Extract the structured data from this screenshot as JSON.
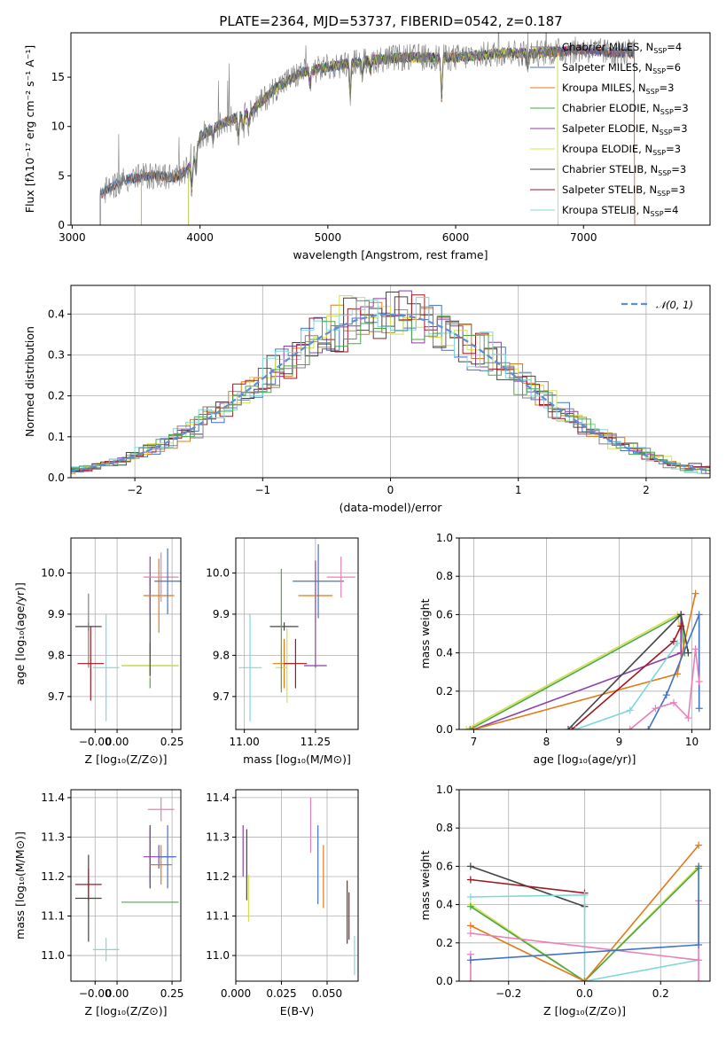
{
  "figure": {
    "title": "PLATE=2364, MJD=53737, FIBERID=0542, z=0.187"
  },
  "colors": {
    "chabrier_miles": "#808080",
    "salpeter_miles": "#4472c4",
    "kroupa_miles": "#e07b1a",
    "chabrier_elodie": "#4aa84a",
    "salpeter_elodie": "#8b3fa8",
    "kroupa_elodie": "#d4e04a",
    "chabrier_stelib": "#444444",
    "salpeter_stelib": "#a01820",
    "kroupa_stelib": "#7fd8d8",
    "pink": "#e87fb8",
    "normal_curve": "#5b8fd6"
  },
  "chart_data": [
    {
      "id": "spectrum",
      "type": "line",
      "title": "PLATE=2364, MJD=53737, FIBERID=0542, z=0.187",
      "xlabel": "wavelength [Angstrom, rest frame]",
      "ylabel": "Flux [fλ10⁻¹⁷ erg cm⁻² s⁻¹ A⁻¹]",
      "xlim": [
        2990,
        7990
      ],
      "ylim": [
        0,
        19.5
      ],
      "xticks": [
        "3000",
        "4000",
        "5000",
        "6000",
        "7000"
      ],
      "yticks": [
        "0",
        "5",
        "10",
        "15"
      ],
      "grid": false,
      "legend_position": "top-right",
      "legend": [
        {
          "label": "Chabrier MILES, N",
          "sub": "SSP",
          "suffix": "=4",
          "color": "#808080"
        },
        {
          "label": "Salpeter MILES, N",
          "sub": "SSP",
          "suffix": "=6",
          "color": "#4472c4"
        },
        {
          "label": "Kroupa MILES, N",
          "sub": "SSP",
          "suffix": "=3",
          "color": "#e07b1a"
        },
        {
          "label": "Chabrier ELODIE, N",
          "sub": "SSP",
          "suffix": "=3",
          "color": "#4aa84a"
        },
        {
          "label": "Salpeter ELODIE, N",
          "sub": "SSP",
          "suffix": "=3",
          "color": "#8b3fa8"
        },
        {
          "label": "Kroupa ELODIE, N",
          "sub": "SSP",
          "suffix": "=3",
          "color": "#d4e04a"
        },
        {
          "label": "Chabrier STELIB, N",
          "sub": "SSP",
          "suffix": "=3",
          "color": "#444444"
        },
        {
          "label": "Salpeter STELIB, N",
          "sub": "SSP",
          "suffix": "=3",
          "color": "#a01820"
        },
        {
          "label": "Kroupa STELIB, N",
          "sub": "SSP",
          "suffix": "=4",
          "color": "#7fd8d8"
        }
      ],
      "continuum": [
        [
          3220,
          3.2
        ],
        [
          3400,
          4.6
        ],
        [
          3600,
          5.0
        ],
        [
          3700,
          5.0
        ],
        [
          3800,
          4.8
        ],
        [
          3900,
          5.6
        ],
        [
          3950,
          6.5
        ],
        [
          4000,
          9.0
        ],
        [
          4200,
          10.5
        ],
        [
          4400,
          11.5
        ],
        [
          4600,
          14.0
        ],
        [
          4800,
          15.5
        ],
        [
          5000,
          16.0
        ],
        [
          5200,
          16.5
        ],
        [
          5400,
          16.8
        ],
        [
          5600,
          17.0
        ],
        [
          5800,
          17.0
        ],
        [
          6000,
          17.0
        ],
        [
          6200,
          17.2
        ],
        [
          6400,
          17.5
        ],
        [
          6600,
          17.4
        ],
        [
          6800,
          17.6
        ],
        [
          7000,
          17.8
        ],
        [
          7200,
          17.5
        ],
        [
          7400,
          17.5
        ]
      ],
      "range_start": [
        {
          "color": "#808080",
          "x": 3220
        },
        {
          "color": "#7fd8d8",
          "x": 3220
        },
        {
          "color": "#a01820",
          "x": 3220
        },
        {
          "color": "#e07b1a",
          "x": 3540
        },
        {
          "color": "#d4e04a",
          "x": 3910
        },
        {
          "color": "#8b3fa8",
          "x": 3910
        },
        {
          "color": "#4aa84a",
          "x": 3910
        }
      ],
      "range_end": [
        {
          "color": "#d4e04a",
          "x": 6800
        },
        {
          "color": "#4aa84a",
          "x": 6800
        },
        {
          "color": "#e07b1a",
          "x": 7400
        },
        {
          "color": "#a01820",
          "x": 7400
        }
      ]
    },
    {
      "id": "residuals",
      "type": "histogram",
      "xlabel": "(data-model)/error",
      "ylabel": "Normed distribution",
      "xlim": [
        -2.5,
        2.5
      ],
      "ylim": [
        0,
        0.47
      ],
      "xticks": [
        "−2",
        "−1",
        "0",
        "1",
        "2"
      ],
      "yticks": [
        "0.0",
        "0.1",
        "0.2",
        "0.3",
        "0.4"
      ],
      "grid": true,
      "legend_position": "top-right",
      "legend": [
        {
          "label": "𝒩(0, 1)",
          "color": "#5b8fd6",
          "dashed": true
        }
      ],
      "bin_width": 0.1
    },
    {
      "id": "z_age",
      "type": "errorbar",
      "xlabel": "Z [log₁₀(Z/Z⊙)]",
      "ylabel": "age  [log₁₀(age/yr)]",
      "xlim": [
        -0.21,
        0.29
      ],
      "ylim": [
        9.62,
        10.085
      ],
      "xticks": [
        "−0.00",
        "0.00",
        "0.25"
      ],
      "yticks": [
        "9.7",
        "9.8",
        "9.9",
        "10.0"
      ],
      "grid": true,
      "points": [
        {
          "x": -0.13,
          "y": 9.87,
          "xerr": 0.06,
          "yerr": 0.01,
          "color": "#444444"
        },
        {
          "x": -0.13,
          "y": 9.86,
          "xerr": 0.0,
          "yerr": 0.09,
          "color": "#808080"
        },
        {
          "x": -0.12,
          "y": 9.78,
          "xerr": 0.06,
          "yerr": 0.09,
          "color": "#a01820"
        },
        {
          "x": -0.05,
          "y": 9.77,
          "xerr": 0.06,
          "yerr": 0.13,
          "color": "#7fd8d8"
        },
        {
          "x": 0.15,
          "y": 9.775,
          "xerr": 0.13,
          "yerr": 0.055,
          "color": "#4aa84a"
        },
        {
          "x": 0.15,
          "y": 9.775,
          "xerr": 0.13,
          "yerr": 0.03,
          "color": "#d4e04a"
        },
        {
          "x": 0.15,
          "y": 9.87,
          "xerr": 0.0,
          "yerr": 0.12,
          "color": "#444444"
        },
        {
          "x": 0.15,
          "y": 9.97,
          "xerr": 0.0,
          "yerr": 0.07,
          "color": "#8b3fa8"
        },
        {
          "x": 0.19,
          "y": 9.945,
          "xerr": 0.07,
          "yerr": 0.09,
          "color": "#e07b1a"
        },
        {
          "x": 0.2,
          "y": 9.99,
          "xerr": 0.08,
          "yerr": 0.06,
          "color": "#e87fb8"
        },
        {
          "x": 0.23,
          "y": 9.98,
          "xerr": 0.06,
          "yerr": 0.08,
          "color": "#4472c4"
        }
      ]
    },
    {
      "id": "mass_age",
      "type": "errorbar",
      "xlabel": "mass [log₁₀(M/M⊙)]",
      "ylabel": "",
      "xlim": [
        10.97,
        11.4
      ],
      "ylim": [
        9.62,
        10.085
      ],
      "xticks": [
        "11.00",
        "11.25"
      ],
      "yticks": [
        "9.7",
        "9.8",
        "9.9",
        "10.0"
      ],
      "grid": true,
      "points": [
        {
          "x": 11.02,
          "y": 9.77,
          "xerr": 0.04,
          "yerr": 0.13,
          "color": "#7fd8d8"
        },
        {
          "x": 11.14,
          "y": 9.87,
          "xerr": 0.05,
          "yerr": 0.01,
          "color": "#444444"
        },
        {
          "x": 11.14,
          "y": 9.78,
          "xerr": 0.04,
          "yerr": 0.06,
          "color": "#e07b1a"
        },
        {
          "x": 11.13,
          "y": 9.77,
          "xerr": 0.02,
          "yerr": 0.05,
          "color": "#d4e04a"
        },
        {
          "x": 11.15,
          "y": 9.775,
          "xerr": 0.0,
          "yerr": 0.09,
          "color": "#d4e04a"
        },
        {
          "x": 11.18,
          "y": 9.78,
          "xerr": 0.04,
          "yerr": 0.06,
          "color": "#a01820"
        },
        {
          "x": 11.13,
          "y": 9.86,
          "xerr": 0.0,
          "yerr": 0.15,
          "color": "#4aa84a"
        },
        {
          "x": 11.25,
          "y": 9.775,
          "xerr": 0.04,
          "yerr": 0.0,
          "color": "#8b3fa8"
        },
        {
          "x": 11.25,
          "y": 9.9,
          "xerr": 0.0,
          "yerr": 0.13,
          "color": "#8b3fa8"
        },
        {
          "x": 11.25,
          "y": 9.945,
          "xerr": 0.06,
          "yerr": 0.0,
          "color": "#e07b1a"
        },
        {
          "x": 11.26,
          "y": 9.98,
          "xerr": 0.09,
          "yerr": 0.09,
          "color": "#4472c4"
        },
        {
          "x": 11.34,
          "y": 9.99,
          "xerr": 0.05,
          "yerr": 0.05,
          "color": "#e87fb8"
        }
      ]
    },
    {
      "id": "age_weight",
      "type": "line",
      "xlabel": "age  [log₁₀(age/yr)]",
      "ylabel": "mass weight",
      "xlim": [
        6.8,
        10.25
      ],
      "ylim": [
        0,
        1.0
      ],
      "xticks": [
        "7",
        "8",
        "9",
        "10"
      ],
      "yticks": [
        "0.0",
        "0.2",
        "0.4",
        "0.6",
        "0.8",
        "1.0"
      ],
      "grid": true,
      "series": [
        {
          "color": "#d4e04a",
          "points": [
            [
              6.9,
              0.0
            ],
            [
              9.8,
              0.6
            ],
            [
              9.9,
              0.4
            ]
          ]
        },
        {
          "color": "#4aa84a",
          "points": [
            [
              6.95,
              0.0
            ],
            [
              9.85,
              0.6
            ],
            [
              9.9,
              0.4
            ]
          ]
        },
        {
          "color": "#8b3fa8",
          "points": [
            [
              7.0,
              0.0
            ],
            [
              9.85,
              0.4
            ],
            [
              9.85,
              0.6
            ]
          ]
        },
        {
          "color": "#e07b1a",
          "points": [
            [
              7.0,
              0.0
            ],
            [
              9.8,
              0.29
            ],
            [
              10.05,
              0.71
            ]
          ]
        },
        {
          "color": "#444444",
          "points": [
            [
              8.3,
              0.0
            ],
            [
              9.85,
              0.6
            ],
            [
              9.95,
              0.4
            ]
          ]
        },
        {
          "color": "#a01820",
          "points": [
            [
              8.35,
              0.0
            ],
            [
              9.75,
              0.46
            ],
            [
              9.85,
              0.54
            ]
          ]
        },
        {
          "color": "#7fd8d8",
          "points": [
            [
              8.4,
              0.0
            ],
            [
              9.15,
              0.1
            ],
            [
              9.8,
              0.45
            ]
          ]
        },
        {
          "color": "#4472c4",
          "points": [
            [
              9.4,
              0.0
            ],
            [
              9.65,
              0.18
            ],
            [
              10.1,
              0.6
            ],
            [
              10.1,
              0.11
            ]
          ]
        },
        {
          "color": "#e87fb8",
          "points": [
            [
              9.15,
              0.0
            ],
            [
              9.5,
              0.11
            ],
            [
              9.75,
              0.14
            ],
            [
              9.95,
              0.06
            ],
            [
              10.05,
              0.42
            ],
            [
              10.1,
              0.25
            ]
          ]
        }
      ]
    },
    {
      "id": "z_mass",
      "type": "errorbar",
      "xlabel": "Z [log₁₀(Z/Z⊙)]",
      "ylabel": "mass [log₁₀(M/M⊙)]",
      "xlim": [
        -0.21,
        0.29
      ],
      "ylim": [
        10.935,
        11.42
      ],
      "xticks": [
        "−0.00",
        "0.00",
        "0.25"
      ],
      "yticks": [
        "11.0",
        "11.1",
        "11.2",
        "11.3",
        "11.4"
      ],
      "grid": true,
      "points": [
        {
          "x": -0.13,
          "y": 11.145,
          "xerr": 0.06,
          "yerr": 0.11,
          "color": "#444444"
        },
        {
          "x": -0.13,
          "y": 11.18,
          "xerr": 0.06,
          "yerr": 0.04,
          "color": "#a01820"
        },
        {
          "x": -0.05,
          "y": 11.015,
          "xerr": 0.06,
          "yerr": 0.03,
          "color": "#7fd8d8"
        },
        {
          "x": 0.15,
          "y": 11.135,
          "xerr": 0.13,
          "yerr": 0.0,
          "color": "#4aa84a"
        },
        {
          "x": 0.15,
          "y": 11.25,
          "xerr": 0.0,
          "yerr": 0.08,
          "color": "#444444"
        },
        {
          "x": 0.15,
          "y": 11.25,
          "xerr": 0.0,
          "yerr": 0.07,
          "color": "#8b3fa8"
        },
        {
          "x": 0.19,
          "y": 11.25,
          "xerr": 0.07,
          "yerr": 0.03,
          "color": "#8b3fa8"
        },
        {
          "x": 0.2,
          "y": 11.23,
          "xerr": 0.05,
          "yerr": 0.05,
          "color": "#e07b1a"
        },
        {
          "x": 0.2,
          "y": 11.37,
          "xerr": 0.06,
          "yerr": 0.03,
          "color": "#e87fb8"
        },
        {
          "x": 0.23,
          "y": 11.25,
          "xerr": 0.04,
          "yerr": 0.08,
          "color": "#4472c4"
        }
      ]
    },
    {
      "id": "ebv_mass",
      "type": "errorbar",
      "xlabel": "E(B-V)",
      "ylabel": "",
      "xlim": [
        0.0,
        0.067
      ],
      "ylim": [
        10.935,
        11.42
      ],
      "xticks": [
        "0.000",
        "0.025",
        "0.050"
      ],
      "yticks": [
        "11.0",
        "11.1",
        "11.2",
        "11.3",
        "11.4"
      ],
      "grid": true,
      "points": [
        {
          "x": 0.004,
          "y": 11.265,
          "xerr": 0.0,
          "yerr": 0.065,
          "color": "#8b3fa8"
        },
        {
          "x": 0.006,
          "y": 11.23,
          "xerr": 0.0,
          "yerr": 0.09,
          "color": "#444444"
        },
        {
          "x": 0.007,
          "y": 11.145,
          "xerr": 0.0,
          "yerr": 0.06,
          "color": "#d4e04a"
        },
        {
          "x": 0.041,
          "y": 11.33,
          "xerr": 0.0,
          "yerr": 0.07,
          "color": "#e87fb8"
        },
        {
          "x": 0.045,
          "y": 11.23,
          "xerr": 0.0,
          "yerr": 0.1,
          "color": "#4472c4"
        },
        {
          "x": 0.048,
          "y": 11.2,
          "xerr": 0.0,
          "yerr": 0.08,
          "color": "#e07b1a"
        },
        {
          "x": 0.061,
          "y": 11.11,
          "xerr": 0.0,
          "yerr": 0.08,
          "color": "#a01820"
        },
        {
          "x": 0.062,
          "y": 11.1,
          "xerr": 0.0,
          "yerr": 0.06,
          "color": "#444444"
        },
        {
          "x": 0.065,
          "y": 11.0,
          "xerr": 0.0,
          "yerr": 0.05,
          "color": "#7fd8d8"
        }
      ]
    },
    {
      "id": "z_weight",
      "type": "line",
      "xlabel": "Z [log₁₀(Z/Z⊙)]",
      "ylabel": "mass weight",
      "xlim": [
        -0.33,
        0.33
      ],
      "ylim": [
        0,
        1.0
      ],
      "xticks": [
        "−0.2",
        "0.0",
        "0.2"
      ],
      "yticks": [
        "0.0",
        "0.2",
        "0.4",
        "0.6",
        "0.8",
        "1.0"
      ],
      "grid": true,
      "series": [
        {
          "color": "#444444",
          "points": [
            [
              -0.3,
              0.6
            ],
            [
              0.0,
              0.39
            ]
          ]
        },
        {
          "color": "#a01820",
          "points": [
            [
              -0.3,
              0.53
            ],
            [
              0.0,
              0.46
            ]
          ]
        },
        {
          "color": "#7fd8d8",
          "points": [
            [
              -0.3,
              0.44
            ],
            [
              0.0,
              0.45
            ],
            [
              0.0,
              0.0
            ],
            [
              0.3,
              0.11
            ]
          ]
        },
        {
          "color": "#d4e04a",
          "points": [
            [
              -0.3,
              0.4
            ],
            [
              0.0,
              0.0
            ],
            [
              0.3,
              0.6
            ]
          ]
        },
        {
          "color": "#4aa84a",
          "points": [
            [
              -0.3,
              0.39
            ],
            [
              0.0,
              0.0
            ],
            [
              0.3,
              0.59
            ]
          ]
        },
        {
          "color": "#e07b1a",
          "points": [
            [
              -0.3,
              0.29
            ],
            [
              0.0,
              0.0
            ],
            [
              0.3,
              0.71
            ]
          ]
        },
        {
          "color": "#e87fb8",
          "points": [
            [
              -0.3,
              0.25
            ],
            [
              0.3,
              0.11
            ],
            [
              0.3,
              0.42
            ],
            [
              0.3,
              0.0
            ]
          ]
        },
        {
          "color": "#e87fb8",
          "points": [
            [
              -0.3,
              0.14
            ],
            [
              -0.3,
              0.0
            ]
          ]
        },
        {
          "color": "#4472c4",
          "points": [
            [
              -0.3,
              0.11
            ],
            [
              0.3,
              0.19
            ],
            [
              0.3,
              0.6
            ]
          ]
        }
      ]
    }
  ]
}
